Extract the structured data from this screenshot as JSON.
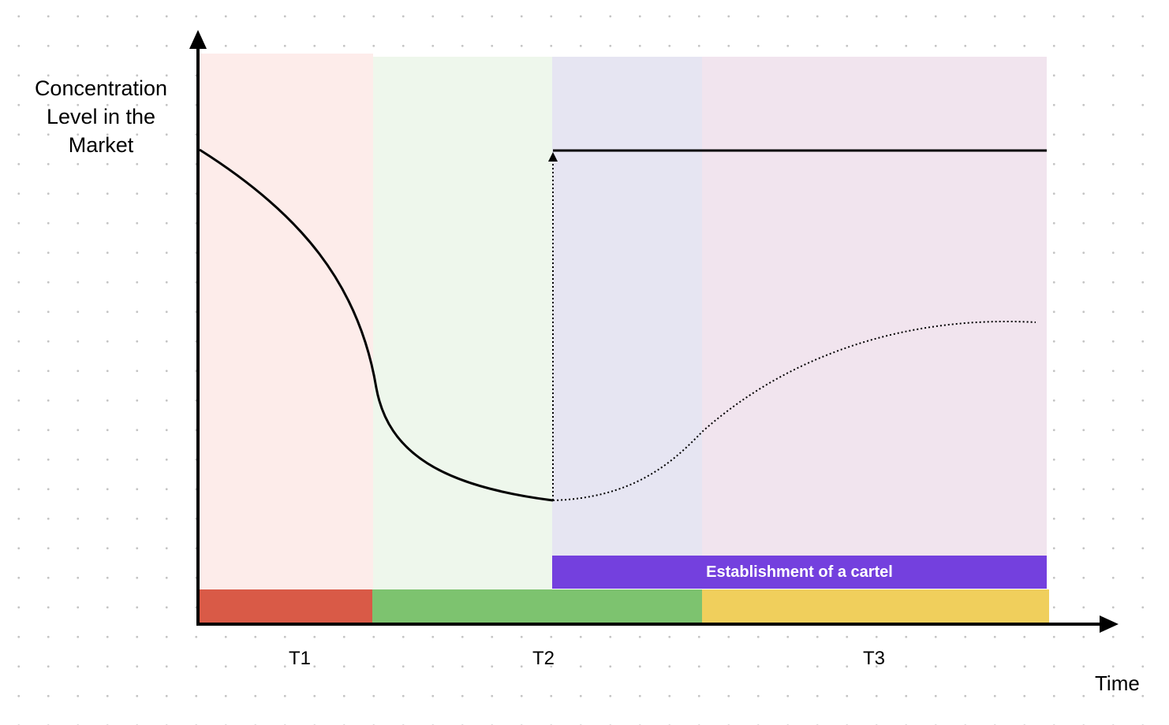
{
  "y_axis_label": [
    "Concentration",
    "Level in the",
    "Market"
  ],
  "x_axis_label": "Time",
  "periods": [
    "T1",
    "T2",
    "T3"
  ],
  "cartel_label": "Establishment of a cartel",
  "colors": {
    "zone_t1": "#fdecea",
    "zone_t2": "#eef7ec",
    "zone_t2b": "#e6e5f2",
    "zone_t3": "#f1e4ee",
    "bar_t1": "#d95a47",
    "bar_t2": "#7dc36f",
    "bar_t3": "#f0cf5c",
    "cartel": "#7440de",
    "line": "#000000"
  }
}
